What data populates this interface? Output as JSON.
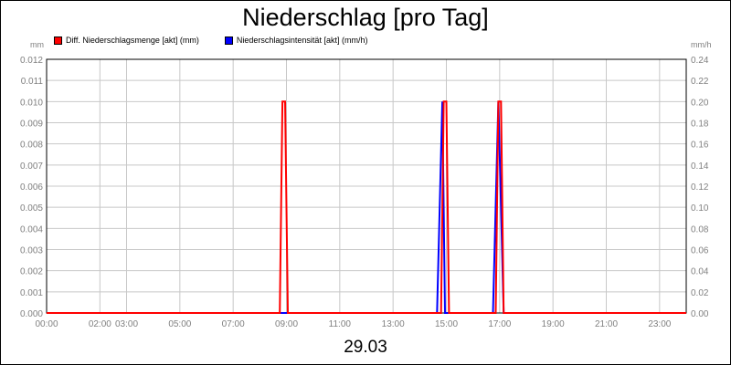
{
  "chart_data": {
    "type": "line",
    "title": "Niederschlag [pro Tag]",
    "xlabel": "29.03",
    "left_unit": "mm",
    "right_unit": "mm/h",
    "x_ticks": [
      "00:00",
      "02:00",
      "03:00",
      "05:00",
      "07:00",
      "09:00",
      "11:00",
      "13:00",
      "15:00",
      "17:00",
      "19:00",
      "21:00",
      "23:00"
    ],
    "x_tick_hours": [
      0,
      2,
      3,
      5,
      7,
      9,
      11,
      13,
      15,
      17,
      19,
      21,
      23
    ],
    "xlim": [
      0,
      24
    ],
    "y_left_ticks": [
      "0.000",
      "0.001",
      "0.002",
      "0.003",
      "0.004",
      "0.005",
      "0.006",
      "0.007",
      "0.008",
      "0.009",
      "0.010",
      "0.011",
      "0.012"
    ],
    "ylim_left": [
      0,
      0.012
    ],
    "y_right_ticks": [
      "0.00",
      "0.02",
      "0.04",
      "0.06",
      "0.08",
      "0.10",
      "0.12",
      "0.14",
      "0.16",
      "0.18",
      "0.20",
      "0.22",
      "0.24"
    ],
    "ylim_right": [
      0,
      0.24
    ],
    "grid": true,
    "legend_position": "top-left",
    "series": [
      {
        "name": "Niederschlagsintensität [akt] (mm/h)",
        "axis": "right",
        "color": "#0000ff",
        "points": [
          [
            0,
            0
          ],
          [
            14.65,
            0
          ],
          [
            14.85,
            0.2
          ],
          [
            14.95,
            0
          ],
          [
            16.75,
            0
          ],
          [
            16.95,
            0.2
          ],
          [
            17.15,
            0
          ],
          [
            24,
            0
          ]
        ]
      },
      {
        "name": "Diff. Niederschlagsmenge [akt] (mm)",
        "axis": "left",
        "color": "#ff0000",
        "points": [
          [
            0,
            0
          ],
          [
            8.75,
            0
          ],
          [
            8.85,
            0.01
          ],
          [
            8.95,
            0.01
          ],
          [
            9.05,
            0
          ],
          [
            14.8,
            0
          ],
          [
            14.9,
            0.01
          ],
          [
            15.0,
            0.01
          ],
          [
            15.1,
            0
          ],
          [
            16.85,
            0
          ],
          [
            16.95,
            0.01
          ],
          [
            17.05,
            0.01
          ],
          [
            17.15,
            0
          ],
          [
            24,
            0
          ]
        ]
      }
    ]
  }
}
